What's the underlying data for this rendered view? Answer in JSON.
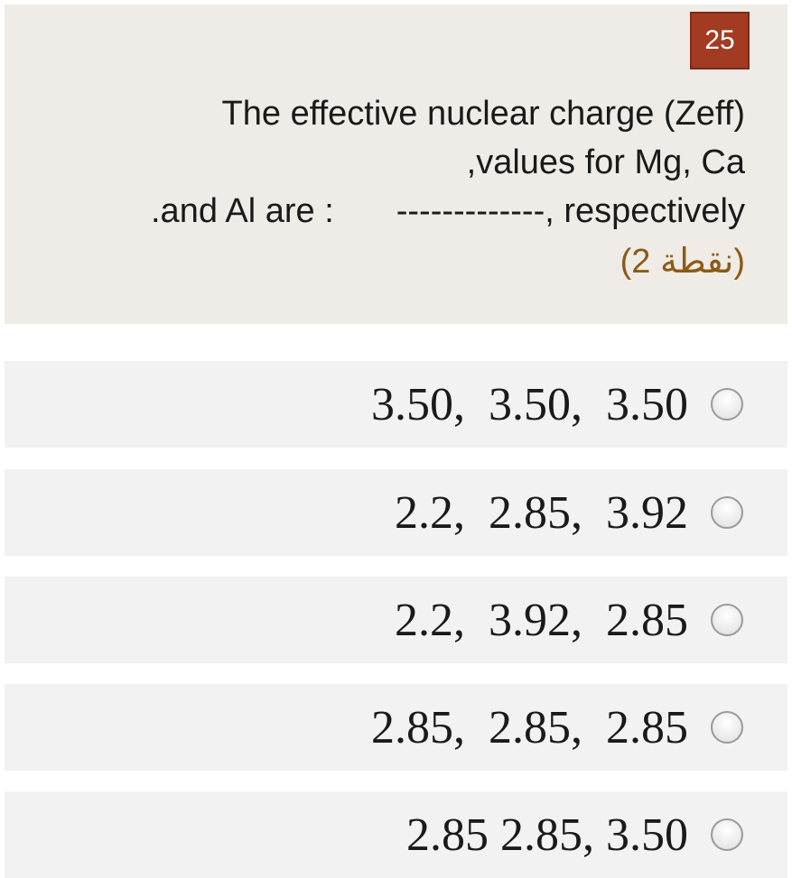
{
  "question": {
    "number": "25",
    "line1": "The effective nuclear charge (Zeff)",
    "line2": ",values for  Mg, Ca",
    "line3_left": ".and Al are :",
    "line3_right": "-------------, respectively",
    "points": "(2 نقطة)"
  },
  "options": [
    {
      "label": "3.50,  3.50,  3.50",
      "selected": false
    },
    {
      "label": "2.2,  2.85,  3.92",
      "selected": false
    },
    {
      "label": "2.2,  3.92,  2.85",
      "selected": false
    },
    {
      "label": "2.85,  2.85,  2.85",
      "selected": false
    },
    {
      "label": "2.85 2.85, 3.50",
      "selected": false
    }
  ],
  "colors": {
    "card_background": "#efebe6",
    "badge_background": "#a23b22",
    "points_text": "#8b5a14",
    "option_background": "#f2f2f2"
  }
}
